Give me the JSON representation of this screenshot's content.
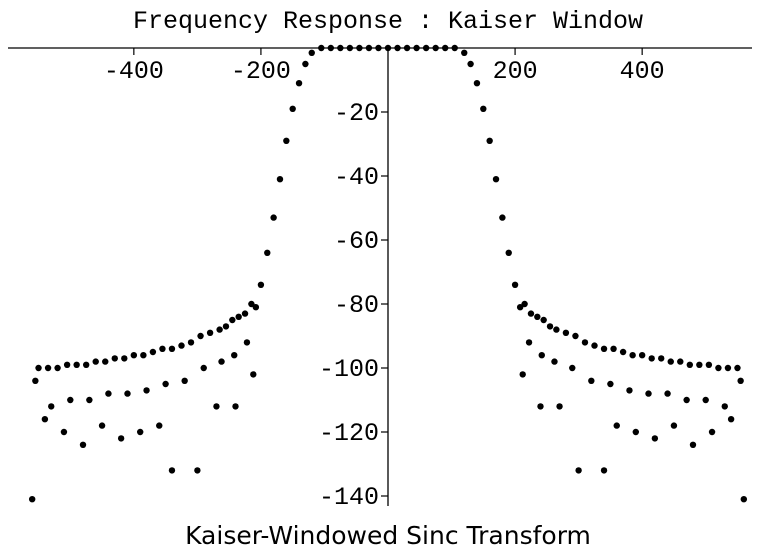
{
  "chart_data": {
    "type": "scatter",
    "title": "Frequency Response : Kaiser Window",
    "x_label": "Kaiser-Windowed Sinc Transform",
    "color": "#000000",
    "xlim": [
      -565,
      565
    ],
    "ylim": [
      -145,
      0
    ],
    "xticks": [
      -400,
      -200,
      200,
      400
    ],
    "yticks": [
      -20,
      -40,
      -60,
      -80,
      -100,
      -120,
      -140
    ],
    "x": [
      0,
      15,
      30,
      45,
      60,
      75,
      90,
      105,
      120,
      130,
      140,
      150,
      160,
      170,
      180,
      190,
      200,
      208,
      215,
      225,
      235,
      245,
      255,
      265,
      280,
      295,
      310,
      325,
      340,
      355,
      370,
      385,
      400,
      415,
      430,
      445,
      460,
      475,
      490,
      505,
      520,
      535,
      550,
      222,
      242,
      262,
      290,
      320,
      350,
      380,
      410,
      440,
      470,
      500,
      530,
      555,
      212,
      240,
      270,
      300,
      340,
      360,
      390,
      420,
      450,
      480,
      510,
      540,
      560,
      -15,
      -30,
      -45,
      -60,
      -75,
      -90,
      -105,
      -120,
      -130,
      -140,
      -150,
      -160,
      -170,
      -180,
      -190,
      -200,
      -208,
      -215,
      -225,
      -235,
      -245,
      -255,
      -265,
      -280,
      -295,
      -310,
      -325,
      -340,
      -355,
      -370,
      -385,
      -400,
      -415,
      -430,
      -445,
      -460,
      -475,
      -490,
      -505,
      -520,
      -535,
      -550,
      -222,
      -242,
      -262,
      -290,
      -320,
      -350,
      -380,
      -410,
      -440,
      -470,
      -500,
      -530,
      -555,
      -212,
      -240,
      -270,
      -300,
      -340,
      -360,
      -390,
      -420,
      -450,
      -480,
      -510,
      -540,
      -560
    ],
    "values": [
      0,
      0,
      0,
      0,
      0,
      0,
      0,
      0,
      -1.5,
      -5,
      -11,
      -19,
      -29,
      -41,
      -53,
      -64,
      -74,
      -81,
      -80,
      -83,
      -84,
      -85,
      -87,
      -88,
      -89,
      -90,
      -92,
      -93,
      -94,
      -94,
      -95,
      -96,
      -96,
      -97,
      -97,
      -98,
      -98,
      -99,
      -99,
      -99,
      -100,
      -100,
      -100,
      -92,
      -96,
      -98,
      -100,
      -104,
      -105,
      -107,
      -108,
      -108,
      -110,
      -110,
      -112,
      -104,
      -102,
      -112,
      -112,
      -132,
      -132,
      -118,
      -120,
      -122,
      -118,
      -124,
      -120,
      -116,
      -141,
      0,
      0,
      0,
      0,
      0,
      0,
      0,
      -1.5,
      -5,
      -11,
      -19,
      -29,
      -41,
      -53,
      -64,
      -74,
      -81,
      -80,
      -83,
      -84,
      -85,
      -87,
      -88,
      -89,
      -90,
      -92,
      -93,
      -94,
      -94,
      -95,
      -96,
      -96,
      -97,
      -97,
      -98,
      -98,
      -99,
      -99,
      -99,
      -100,
      -100,
      -100,
      -92,
      -96,
      -98,
      -100,
      -104,
      -105,
      -107,
      -108,
      -108,
      -110,
      -110,
      -112,
      -104,
      -102,
      -112,
      -112,
      -132,
      -132,
      -118,
      -120,
      -122,
      -118,
      -124,
      -120,
      -116,
      -141
    ]
  }
}
